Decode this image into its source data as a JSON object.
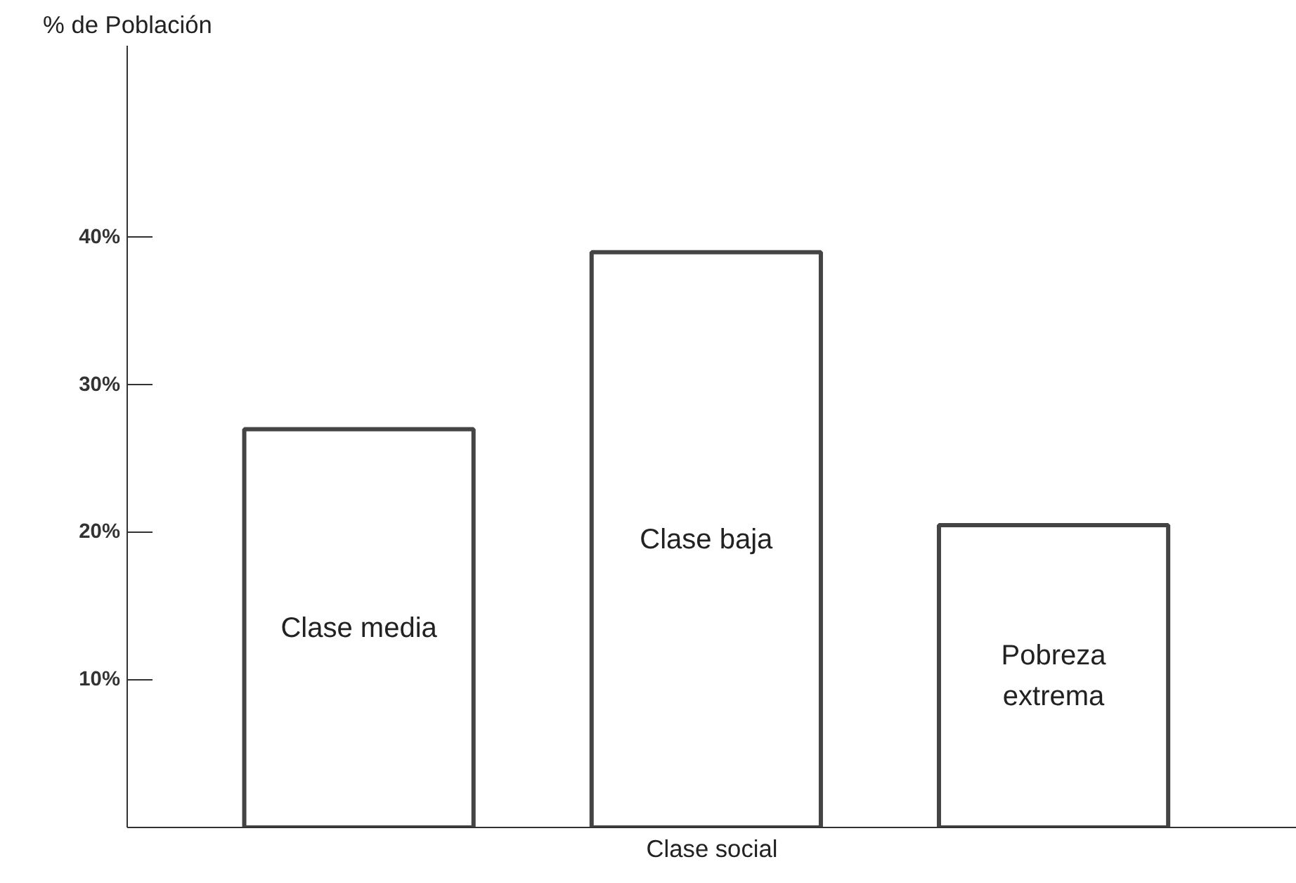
{
  "chart_data": {
    "type": "bar",
    "xlabel": "Clase social",
    "ylabel": "% de Población",
    "categories": [
      "Clase media",
      "Clase baja",
      "Pobreza extrema"
    ],
    "values": [
      27,
      39,
      20.5
    ],
    "color": "#ffffff",
    "ylim": [
      0,
      53
    ],
    "yticks": [
      {
        "value": 10,
        "label": "10%"
      },
      {
        "value": 20,
        "label": "20%"
      },
      {
        "value": 30,
        "label": "30%"
      },
      {
        "value": 40,
        "label": "40%"
      }
    ],
    "tick_labels": "y",
    "grid": false
  }
}
